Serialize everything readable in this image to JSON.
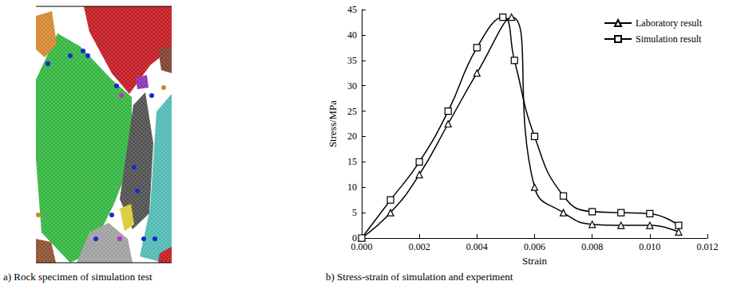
{
  "image_panel": {
    "caption": "a) Rock specimen of simulation test"
  },
  "chart_data": {
    "type": "line",
    "title": "b) Stress-strain of simulation and experiment",
    "x_label": "Strain",
    "y_label": "Stress/MPa",
    "xlim": [
      0,
      0.012
    ],
    "xticks": [
      {
        "value": 0,
        "label": "0.000"
      },
      {
        "value": 0.002,
        "label": "0.002"
      },
      {
        "value": 0.004,
        "label": "0.004"
      },
      {
        "value": 0.006,
        "label": "0.006"
      },
      {
        "value": 0.008,
        "label": "0.008"
      },
      {
        "value": 0.01,
        "label": "0.010"
      },
      {
        "value": 0.012,
        "label": "0.012"
      }
    ],
    "ylim": [
      0,
      45
    ],
    "yticks": [
      0,
      5,
      10,
      15,
      20,
      25,
      30,
      35,
      40,
      45
    ],
    "grid": false,
    "legend": "top-right",
    "series": [
      {
        "name": "Laboratory result",
        "color": "#000000",
        "marker": "triangle",
        "line_style": "solid",
        "x": [
          0,
          0.001,
          0.002,
          0.003,
          0.004,
          0.0052,
          0.006,
          0.007,
          0.008,
          0.009,
          0.01,
          0.011
        ],
        "values": [
          0,
          5,
          12.5,
          22.5,
          32.5,
          43.5,
          10,
          5,
          2.7,
          2.5,
          2.5,
          1.2
        ]
      },
      {
        "name": "Simulation result",
        "color": "#000000",
        "marker": "square",
        "line_style": "solid",
        "x": [
          0,
          0.001,
          0.002,
          0.003,
          0.004,
          0.0049,
          0.0053,
          0.006,
          0.007,
          0.008,
          0.009,
          0.01,
          0.011
        ],
        "values": [
          0,
          7.5,
          15,
          25,
          37.5,
          43.5,
          35,
          20,
          8.3,
          5.2,
          5,
          4.8,
          2.5
        ]
      }
    ]
  }
}
